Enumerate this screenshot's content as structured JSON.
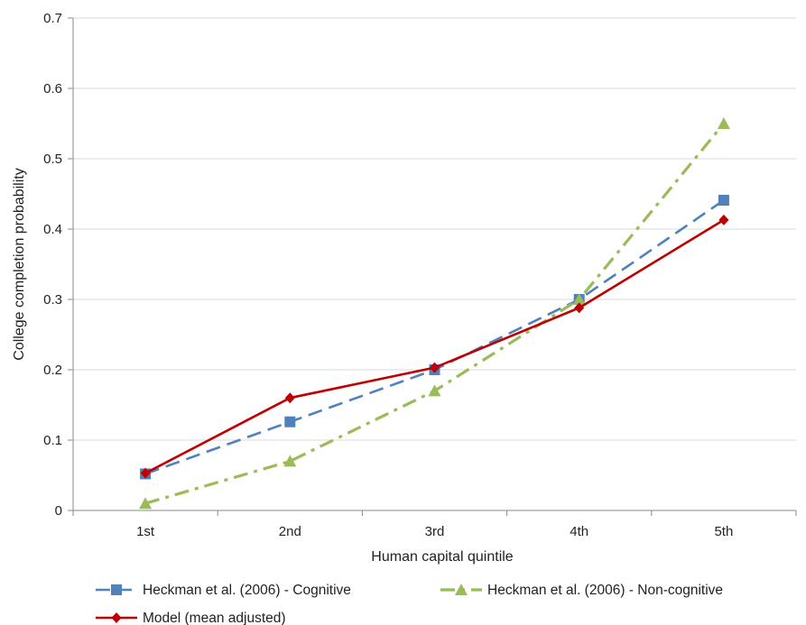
{
  "chart_data": {
    "type": "line",
    "title": "",
    "xlabel": "Human capital quintile",
    "ylabel": "College completion probability",
    "categories": [
      "1st",
      "2nd",
      "3rd",
      "4th",
      "5th"
    ],
    "ylim": [
      0,
      0.7
    ],
    "yticks": [
      0,
      0.1,
      0.2,
      0.3,
      0.4,
      0.5,
      0.6,
      0.7
    ],
    "ytick_labels": [
      "0",
      "0.1",
      "0.2",
      "0.3",
      "0.4",
      "0.5",
      "0.6",
      "0.7"
    ],
    "grid": "horizontal",
    "legend_position": "bottom",
    "series": [
      {
        "name": "Heckman et al. (2006) - Cognitive",
        "values": [
          0.052,
          0.126,
          0.2,
          0.3,
          0.441
        ],
        "color": "#4f81bd",
        "marker": "square",
        "dash": "long-dash"
      },
      {
        "name": "Heckman et al. (2006) - Non-cognitive",
        "values": [
          0.01,
          0.07,
          0.17,
          0.3,
          0.55
        ],
        "color": "#9bbb59",
        "marker": "triangle",
        "dash": "dash-dot"
      },
      {
        "name": "Model (mean adjusted)",
        "values": [
          0.053,
          0.16,
          0.203,
          0.288,
          0.413
        ],
        "color": "#c00000",
        "marker": "diamond",
        "dash": "solid"
      }
    ]
  }
}
